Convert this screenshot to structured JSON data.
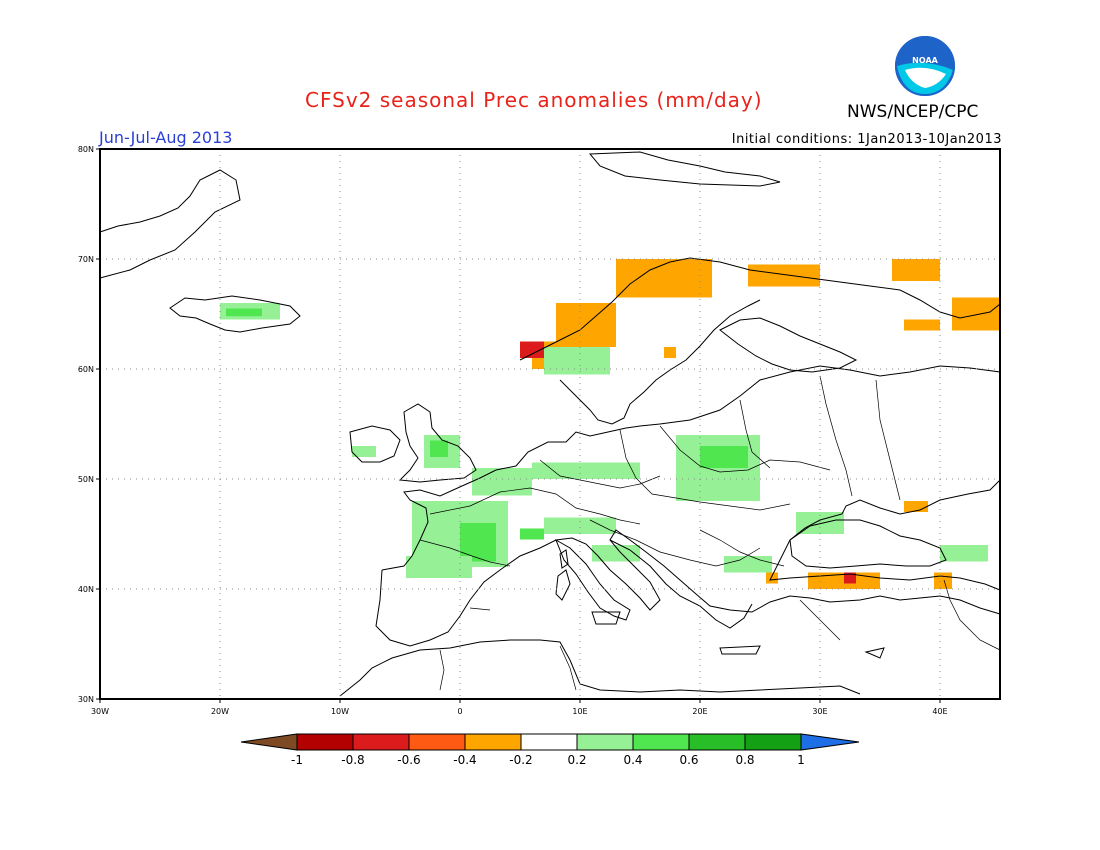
{
  "title": "CFSv2 seasonal Prec anomalies (mm/day)",
  "agency": "NWS/NCEP/CPC",
  "logo_text": "NOAA",
  "period": "Jun-Jul-Aug 2013",
  "initial_conditions": "Initial conditions: 1Jan2013-10Jan2013",
  "lon_ticks": [
    "30W",
    "20W",
    "10W",
    "0",
    "10E",
    "20E",
    "30E",
    "40E"
  ],
  "lat_ticks": [
    "30N",
    "40N",
    "50N",
    "60N",
    "70N",
    "80N"
  ],
  "colorbar": {
    "labels": [
      "-1",
      "-0.8",
      "-0.6",
      "-0.4",
      "-0.2",
      "0.2",
      "0.4",
      "0.6",
      "0.8",
      "1"
    ],
    "colors": [
      "#7d4a24",
      "#b30000",
      "#dc1c1c",
      "#ff5a14",
      "#ffa500",
      "#ffffff",
      "#96f096",
      "#50e650",
      "#28be28",
      "#14a014",
      "#1e6ee6"
    ]
  },
  "colors": {
    "title": "#e8231a",
    "period": "#2a3fd8",
    "logo_blue": "#1e64c8",
    "logo_cyan": "#00c8e6"
  },
  "map_data": {
    "lon_range": [
      -30,
      45
    ],
    "lat_range": [
      30,
      80
    ],
    "anomaly_regions": [
      {
        "name": "Iceland",
        "level": 0.2,
        "lon": [
          -20,
          -15
        ],
        "lat": [
          64.5,
          66
        ]
      },
      {
        "name": "Iceland core",
        "level": 0.4,
        "lon": [
          -19.5,
          -16.5
        ],
        "lat": [
          64.8,
          65.5
        ]
      },
      {
        "name": "Norway coast west",
        "level": -0.2,
        "lon": [
          6,
          8
        ],
        "lat": [
          60,
          62.5
        ]
      },
      {
        "name": "Norway coast west core",
        "level": -0.6,
        "lon": [
          5,
          7
        ],
        "lat": [
          61,
          62.5
        ]
      },
      {
        "name": "Norway coast mid",
        "level": -0.2,
        "lon": [
          8,
          13
        ],
        "lat": [
          62,
          66
        ]
      },
      {
        "name": "Norway coast north",
        "level": -0.2,
        "lon": [
          13,
          21
        ],
        "lat": [
          66.5,
          70
        ]
      },
      {
        "name": "Kola peninsula",
        "level": -0.2,
        "lon": [
          24,
          30
        ],
        "lat": [
          67.5,
          69.5
        ]
      },
      {
        "name": "NW Russia",
        "level": -0.2,
        "lon": [
          36,
          40
        ],
        "lat": [
          68,
          70
        ]
      },
      {
        "name": "NW Russia east",
        "level": -0.2,
        "lon": [
          41,
          45
        ],
        "lat": [
          63.5,
          66.5
        ]
      },
      {
        "name": "White Sea",
        "level": -0.2,
        "lon": [
          37,
          40
        ],
        "lat": [
          63.5,
          64.5
        ]
      },
      {
        "name": "Finland south",
        "level": -0.2,
        "lon": [
          17,
          18
        ],
        "lat": [
          61,
          62
        ]
      },
      {
        "name": "Southern Norway",
        "level": 0.2,
        "lon": [
          7,
          12.5
        ],
        "lat": [
          59.5,
          62
        ]
      },
      {
        "name": "Ireland",
        "level": 0.2,
        "lon": [
          -9,
          -7
        ],
        "lat": [
          52,
          53
        ]
      },
      {
        "name": "Britain",
        "level": 0.2,
        "lon": [
          -3,
          0
        ],
        "lat": [
          51,
          54
        ]
      },
      {
        "name": "Britain core",
        "level": 0.4,
        "lon": [
          -2.5,
          -1
        ],
        "lat": [
          52,
          53.5
        ]
      },
      {
        "name": "Low countries",
        "level": 0.2,
        "lon": [
          1,
          6
        ],
        "lat": [
          48.5,
          51
        ]
      },
      {
        "name": "Germany",
        "level": 0.2,
        "lon": [
          6,
          15
        ],
        "lat": [
          50,
          51.5
        ]
      },
      {
        "name": "France",
        "level": 0.2,
        "lon": [
          -4,
          4
        ],
        "lat": [
          42,
          48
        ]
      },
      {
        "name": "France core",
        "level": 0.4,
        "lon": [
          0,
          3
        ],
        "lat": [
          42.5,
          46
        ]
      },
      {
        "name": "Spain north",
        "level": 0.2,
        "lon": [
          -4.5,
          1
        ],
        "lat": [
          41,
          43
        ]
      },
      {
        "name": "Alps",
        "level": 0.2,
        "lon": [
          7,
          13
        ],
        "lat": [
          45,
          46.5
        ]
      },
      {
        "name": "Alps core",
        "level": 0.4,
        "lon": [
          5,
          7
        ],
        "lat": [
          44.5,
          45.5
        ]
      },
      {
        "name": "Italy",
        "level": 0.2,
        "lon": [
          11,
          15
        ],
        "lat": [
          42.5,
          44
        ]
      },
      {
        "name": "Poland",
        "level": 0.2,
        "lon": [
          18,
          25
        ],
        "lat": [
          48,
          54
        ]
      },
      {
        "name": "Poland core",
        "level": 0.4,
        "lon": [
          20,
          24
        ],
        "lat": [
          51,
          53
        ]
      },
      {
        "name": "Balkans",
        "level": 0.2,
        "lon": [
          22,
          26
        ],
        "lat": [
          41.5,
          43
        ]
      },
      {
        "name": "Ukraine south",
        "level": 0.2,
        "lon": [
          28,
          32
        ],
        "lat": [
          45,
          47
        ]
      },
      {
        "name": "Caucasus",
        "level": 0.2,
        "lon": [
          40,
          44
        ],
        "lat": [
          42.5,
          44
        ]
      },
      {
        "name": "Turkey",
        "level": -0.2,
        "lon": [
          29,
          35
        ],
        "lat": [
          40,
          41.5
        ]
      },
      {
        "name": "Turkey core",
        "level": -0.6,
        "lon": [
          32,
          33
        ],
        "lat": [
          40.5,
          41.5
        ]
      },
      {
        "name": "Aegean",
        "level": -0.2,
        "lon": [
          25.5,
          26.5
        ],
        "lat": [
          40.5,
          41.5
        ]
      },
      {
        "name": "Caspian north",
        "level": -0.2,
        "lon": [
          37,
          39
        ],
        "lat": [
          47,
          48
        ]
      },
      {
        "name": "East Anatolia",
        "level": -0.2,
        "lon": [
          39.5,
          41
        ],
        "lat": [
          40,
          41.5
        ]
      }
    ]
  }
}
